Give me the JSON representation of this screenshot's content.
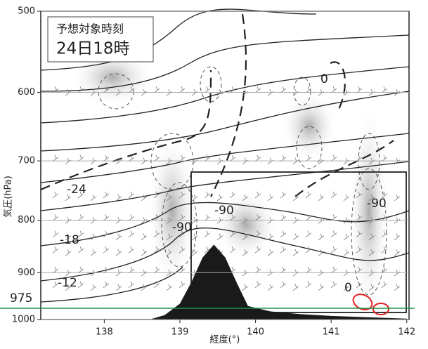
{
  "chart_data": {
    "type": "cross-section",
    "title": "予想対象時刻",
    "subtitle": "24日18時",
    "x_label": "経度(°)",
    "y_label": "気圧(hPa)",
    "xlim": [
      137.16,
      142.03
    ],
    "xticks": [
      138,
      139,
      140,
      141,
      142
    ],
    "ylim": [
      1000,
      500
    ],
    "yticks": [
      500,
      600,
      700,
      800,
      900,
      1000
    ],
    "log_y": true,
    "terrain": {
      "color": "#1a1a1a",
      "x": [
        138.6,
        138.8,
        139.0,
        139.15,
        139.3,
        139.45,
        139.6,
        139.75,
        139.9,
        140.2,
        140.6,
        141.0,
        141.5,
        142.0
      ],
      "values": [
        1000,
        990,
        965,
        920,
        870,
        845,
        870,
        920,
        970,
        982,
        988,
        992,
        995,
        998
      ]
    },
    "reference_line": {
      "value": 975,
      "color": "#1a9641"
    },
    "annotations": [
      "-24",
      "-18",
      "-12",
      "-90",
      "-90",
      "-90",
      "0",
      "0"
    ]
  }
}
